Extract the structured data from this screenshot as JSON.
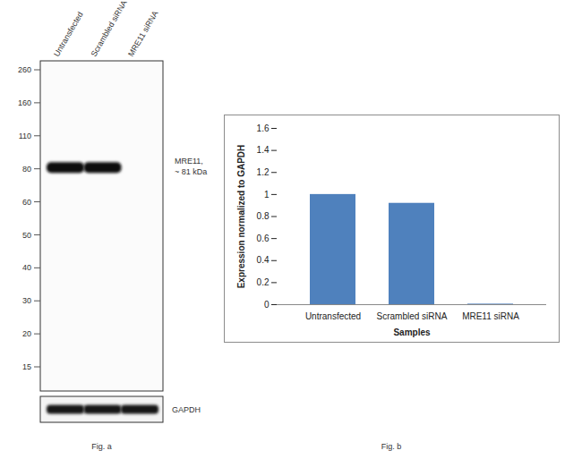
{
  "figure_a": {
    "caption": "Fig. a",
    "lanes": [
      "Untransfected",
      "Scrambled siRNA",
      "MRE11 siRNA"
    ],
    "markers": [
      260,
      160,
      110,
      80,
      60,
      50,
      40,
      30,
      20,
      15
    ],
    "band_label": [
      "MRE11,",
      "~ 81 kDa"
    ],
    "band_kda": 81,
    "band_present": [
      true,
      true,
      false
    ],
    "loading_control": "GAPDH"
  },
  "chart_data": {
    "type": "bar",
    "caption": "Fig. b",
    "categories": [
      "Untransfected",
      "Scrambled siRNA",
      "MRE11 siRNA"
    ],
    "values": [
      1,
      0.92,
      0.005
    ],
    "color": "#4f81bd",
    "xlabel": "Samples",
    "ylabel": "Expression normalized to GAPDH",
    "ylim": [
      0,
      1.6
    ],
    "yticks": [
      0,
      0.2,
      0.4,
      0.6,
      0.8,
      1,
      1.2,
      1.4,
      1.6
    ],
    "grid": false
  }
}
